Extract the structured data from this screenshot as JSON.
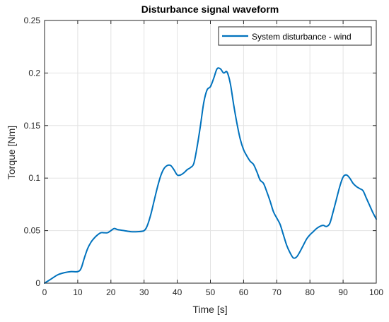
{
  "chart_data": {
    "type": "line",
    "title": "Disturbance signal waveform",
    "xlabel": "Time [s]",
    "ylabel": "Torque [Nm]",
    "xlim": [
      0,
      100
    ],
    "ylim": [
      0,
      0.25
    ],
    "xticks": [
      0,
      10,
      20,
      30,
      40,
      50,
      60,
      70,
      80,
      90,
      100
    ],
    "yticks": [
      0,
      0.05,
      0.1,
      0.15,
      0.2,
      0.25
    ],
    "xtick_labels": [
      "0",
      "10",
      "20",
      "30",
      "40",
      "50",
      "60",
      "70",
      "80",
      "90",
      "100"
    ],
    "ytick_labels": [
      "0",
      "0.05",
      "0.1",
      "0.15",
      "0.2",
      "0.25"
    ],
    "grid": true,
    "legend_position": "top-right",
    "colors": {
      "series": "#0072bd",
      "grid": "#e3e3e3",
      "axes": "#262626"
    },
    "series": [
      {
        "name": "System disturbance - wind",
        "x": [
          0,
          2,
          4,
          6,
          8,
          10,
          11,
          12,
          13,
          14,
          15,
          16,
          17,
          18,
          19,
          20,
          21,
          22,
          24,
          26,
          28,
          30,
          31,
          32,
          33,
          34,
          35,
          36,
          37,
          38,
          39,
          40,
          41,
          42,
          43,
          44,
          45,
          46,
          47,
          48,
          49,
          50,
          51,
          52,
          53,
          54,
          55,
          56,
          57,
          58,
          59,
          60,
          61,
          62,
          63,
          64,
          65,
          66,
          67,
          68,
          69,
          70,
          71,
          72,
          73,
          74,
          75,
          76,
          77,
          78,
          79,
          80,
          81,
          82,
          83,
          84,
          85,
          86,
          87,
          88,
          89,
          90,
          91,
          92,
          93,
          94,
          95,
          96,
          97,
          98,
          99,
          100
        ],
        "y": [
          0,
          0.004,
          0.008,
          0.01,
          0.011,
          0.011,
          0.014,
          0.024,
          0.033,
          0.039,
          0.043,
          0.046,
          0.048,
          0.048,
          0.048,
          0.05,
          0.052,
          0.051,
          0.05,
          0.049,
          0.049,
          0.05,
          0.055,
          0.065,
          0.078,
          0.091,
          0.102,
          0.109,
          0.112,
          0.112,
          0.108,
          0.103,
          0.103,
          0.105,
          0.108,
          0.11,
          0.114,
          0.13,
          0.15,
          0.172,
          0.184,
          0.187,
          0.195,
          0.204,
          0.204,
          0.2,
          0.201,
          0.19,
          0.17,
          0.152,
          0.137,
          0.127,
          0.121,
          0.116,
          0.113,
          0.106,
          0.098,
          0.095,
          0.087,
          0.078,
          0.068,
          0.062,
          0.056,
          0.046,
          0.036,
          0.029,
          0.024,
          0.025,
          0.03,
          0.036,
          0.042,
          0.046,
          0.049,
          0.052,
          0.054,
          0.055,
          0.054,
          0.057,
          0.068,
          0.08,
          0.092,
          0.101,
          0.103,
          0.1,
          0.095,
          0.092,
          0.09,
          0.088,
          0.081,
          0.074,
          0.067,
          0.061
        ]
      }
    ]
  }
}
